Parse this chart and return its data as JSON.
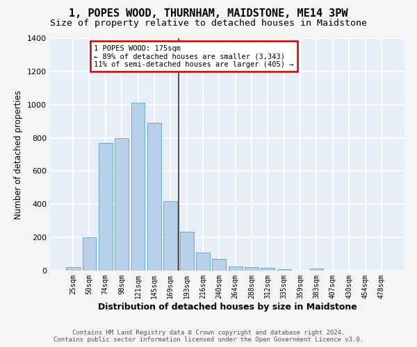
{
  "title": "1, POPES WOOD, THURNHAM, MAIDSTONE, ME14 3PW",
  "subtitle": "Size of property relative to detached houses in Maidstone",
  "xlabel": "Distribution of detached houses by size in Maidstone",
  "ylabel": "Number of detached properties",
  "bar_color": "#b8d0ea",
  "bar_edge_color": "#6aabd2",
  "categories": [
    "25sqm",
    "50sqm",
    "74sqm",
    "98sqm",
    "121sqm",
    "145sqm",
    "169sqm",
    "193sqm",
    "216sqm",
    "240sqm",
    "264sqm",
    "288sqm",
    "312sqm",
    "335sqm",
    "359sqm",
    "383sqm",
    "407sqm",
    "430sqm",
    "454sqm",
    "478sqm"
  ],
  "values": [
    20,
    200,
    770,
    800,
    1010,
    890,
    420,
    235,
    110,
    70,
    25,
    20,
    15,
    10,
    0,
    13,
    0,
    0,
    0,
    0
  ],
  "ylim": [
    0,
    1400
  ],
  "yticks": [
    0,
    200,
    400,
    600,
    800,
    1000,
    1200,
    1400
  ],
  "vline_x": 6.5,
  "vline_color": "#333333",
  "annotation_text": "1 POPES WOOD: 175sqm\n← 89% of detached houses are smaller (3,343)\n11% of semi-detached houses are larger (405) →",
  "annotation_box_facecolor": "#ffffff",
  "annotation_box_edgecolor": "#cc0000",
  "footer_text": "Contains HM Land Registry data © Crown copyright and database right 2024.\nContains public sector information licensed under the Open Government Licence v3.0.",
  "fig_facecolor": "#f5f5f5",
  "ax_facecolor": "#e8eef8",
  "grid_color": "#ffffff",
  "title_fontsize": 11,
  "subtitle_fontsize": 9.5,
  "ylabel_fontsize": 8.5,
  "xlabel_fontsize": 9,
  "tick_fontsize": 7,
  "footer_fontsize": 6.5,
  "annot_fontsize": 7.5
}
